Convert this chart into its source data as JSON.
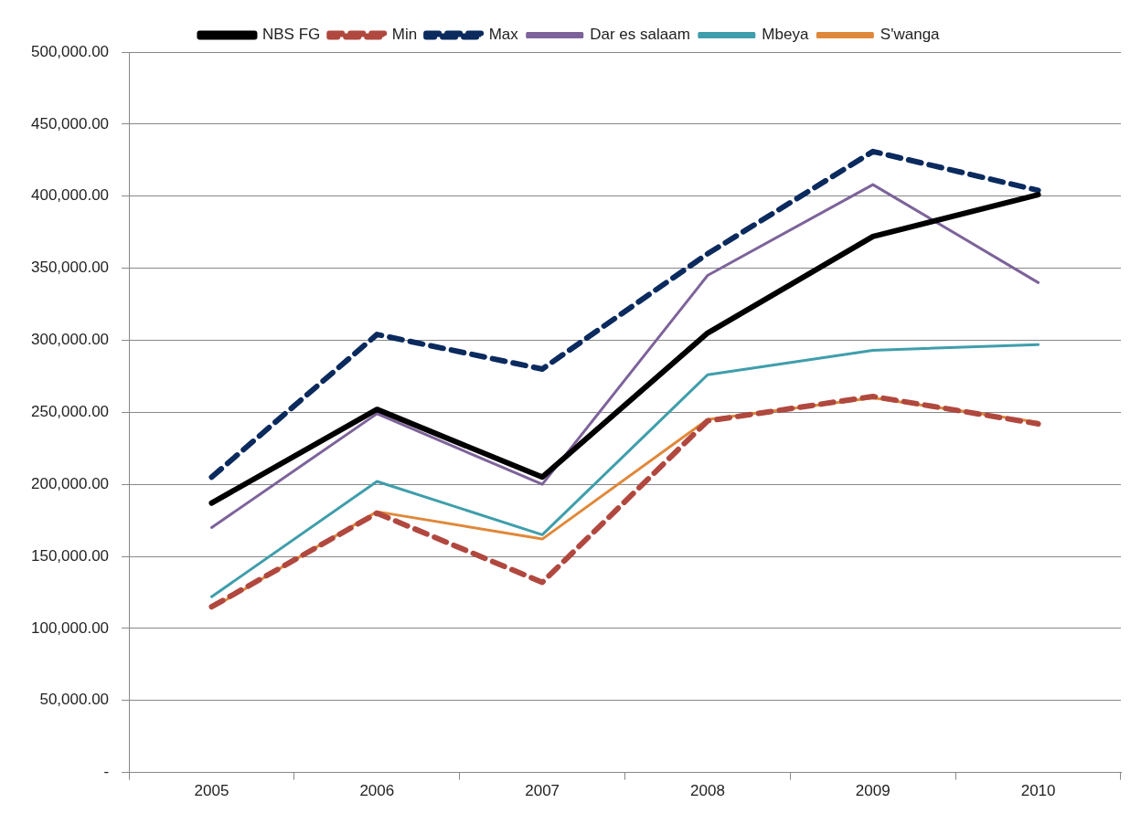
{
  "chart_data": {
    "type": "line",
    "categories": [
      "2005",
      "2006",
      "2007",
      "2008",
      "2009",
      "2010"
    ],
    "series": [
      {
        "name": "NBS FG",
        "color": "#000000",
        "line_style": "solid",
        "values": [
          187000,
          252000,
          205000,
          305000,
          372000,
          401000
        ]
      },
      {
        "name": "Min",
        "color": "#b0483f",
        "line_style": "dashed",
        "values": [
          115000,
          180000,
          132000,
          244000,
          261000,
          242000
        ]
      },
      {
        "name": "Max",
        "color": "#0b2a5e",
        "line_style": "dashed",
        "values": [
          205000,
          304000,
          280000,
          360000,
          431000,
          404000
        ]
      },
      {
        "name": "Dar es salaam",
        "color": "#7d639a",
        "line_style": "solid",
        "values": [
          170000,
          249000,
          200000,
          345000,
          408000,
          340000
        ]
      },
      {
        "name": "Mbeya",
        "color": "#3f9eab",
        "line_style": "solid",
        "values": [
          122000,
          202000,
          165000,
          276000,
          293000,
          297000
        ]
      },
      {
        "name": "S'wanga",
        "color": "#e0883a",
        "line_style": "solid",
        "values": [
          114000,
          181000,
          162000,
          245000,
          260000,
          243000
        ]
      }
    ],
    "ylim": [
      0,
      500000
    ],
    "yticks": [
      {
        "value": 0,
        "label": "-"
      },
      {
        "value": 50000,
        "label": "50,000.00"
      },
      {
        "value": 100000,
        "label": "100,000.00"
      },
      {
        "value": 150000,
        "label": "150,000.00"
      },
      {
        "value": 200000,
        "label": "200,000.00"
      },
      {
        "value": 250000,
        "label": "250,000.00"
      },
      {
        "value": 300000,
        "label": "300,000.00"
      },
      {
        "value": 350000,
        "label": "350,000.00"
      },
      {
        "value": 400000,
        "label": "400,000.00"
      },
      {
        "value": 450000,
        "label": "450,000.00"
      },
      {
        "value": 500000,
        "label": "500,000.00"
      }
    ],
    "grid": "y",
    "legend": "top",
    "marker": "none"
  }
}
